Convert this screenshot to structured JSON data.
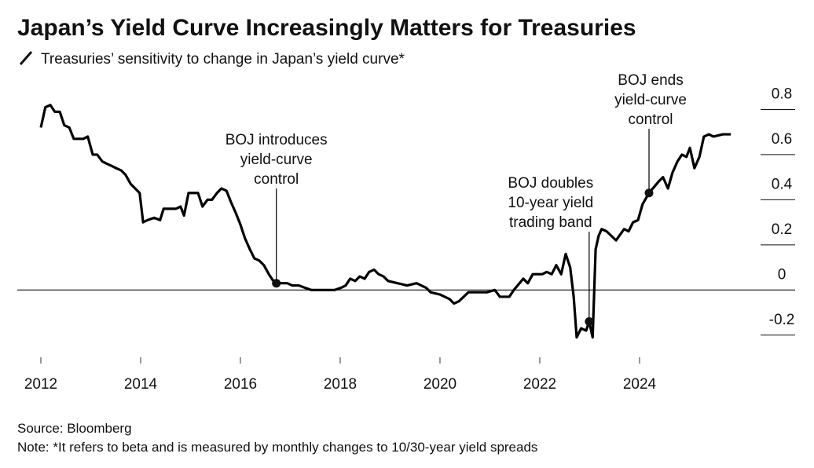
{
  "chart_data": {
    "type": "line",
    "title": "Japan’s Yield Curve Increasingly Matters for Treasuries",
    "subtitle": "Treasuries’ sensitivity to change in Japan’s yield curve*",
    "source": "Source: Bloomberg",
    "note": "Note: *It refers to beta and is measured by monthly changes to 10/30-year yield spreads",
    "color": "#000000",
    "xlim": [
      2011.6,
      2026.3
    ],
    "xticks": [
      2012,
      2014,
      2016,
      2018,
      2020,
      2022,
      2024
    ],
    "ylim": [
      -0.28,
      0.94
    ],
    "yticks": [
      -0.2,
      0,
      0.2,
      0.4,
      0.6,
      0.8
    ],
    "x": [
      2012.0,
      2012.09,
      2012.19,
      2012.28,
      2012.38,
      2012.47,
      2012.57,
      2012.66,
      2012.76,
      2012.85,
      2012.94,
      2013.04,
      2013.13,
      2013.23,
      2013.32,
      2013.42,
      2013.51,
      2013.61,
      2013.7,
      2013.8,
      2013.89,
      2013.98,
      2014.05,
      2014.14,
      2014.27,
      2014.39,
      2014.46,
      2014.58,
      2014.71,
      2014.8,
      2014.87,
      2014.96,
      2015.06,
      2015.15,
      2015.24,
      2015.34,
      2015.43,
      2015.53,
      2015.62,
      2015.72,
      2015.81,
      2015.91,
      2016.0,
      2016.09,
      2016.19,
      2016.28,
      2016.38,
      2016.47,
      2016.57,
      2016.66,
      2016.72,
      2016.85,
      2016.94,
      2017.04,
      2017.17,
      2017.29,
      2017.42,
      2017.51,
      2017.64,
      2017.76,
      2017.89,
      2018.02,
      2018.11,
      2018.2,
      2018.3,
      2018.39,
      2018.49,
      2018.58,
      2018.68,
      2018.77,
      2018.87,
      2018.96,
      2019.15,
      2019.34,
      2019.53,
      2019.72,
      2019.81,
      2020.0,
      2020.19,
      2020.28,
      2020.38,
      2020.57,
      2020.76,
      2020.94,
      2021.1,
      2021.2,
      2021.39,
      2021.48,
      2021.67,
      2021.76,
      2021.86,
      2022.05,
      2022.14,
      2022.24,
      2022.33,
      2022.43,
      2022.52,
      2022.61,
      2022.68,
      2022.74,
      2022.83,
      2022.93,
      2022.99,
      2023.06,
      2023.12,
      2023.18,
      2023.24,
      2023.34,
      2023.53,
      2023.69,
      2023.78,
      2023.87,
      2023.97,
      2024.06,
      2024.19,
      2024.38,
      2024.47,
      2024.57,
      2024.66,
      2024.76,
      2024.85,
      2024.94,
      2025.01,
      2025.1,
      2025.2,
      2025.29,
      2025.39,
      2025.48,
      2025.67,
      2025.83
    ],
    "values": [
      0.72,
      0.81,
      0.82,
      0.79,
      0.79,
      0.73,
      0.72,
      0.67,
      0.67,
      0.67,
      0.68,
      0.6,
      0.6,
      0.57,
      0.56,
      0.55,
      0.54,
      0.53,
      0.51,
      0.47,
      0.45,
      0.43,
      0.3,
      0.31,
      0.32,
      0.31,
      0.36,
      0.36,
      0.36,
      0.37,
      0.33,
      0.43,
      0.43,
      0.43,
      0.37,
      0.4,
      0.4,
      0.43,
      0.45,
      0.44,
      0.39,
      0.34,
      0.29,
      0.23,
      0.18,
      0.14,
      0.13,
      0.11,
      0.07,
      0.04,
      0.03,
      0.03,
      0.03,
      0.02,
      0.02,
      0.01,
      0.0,
      0.0,
      0.0,
      0.0,
      0.0,
      0.01,
      0.02,
      0.05,
      0.04,
      0.06,
      0.05,
      0.08,
      0.09,
      0.07,
      0.06,
      0.04,
      0.03,
      0.02,
      0.03,
      0.01,
      -0.01,
      -0.02,
      -0.04,
      -0.06,
      -0.05,
      -0.01,
      -0.01,
      -0.01,
      0.0,
      -0.03,
      -0.03,
      0.0,
      0.05,
      0.03,
      0.07,
      0.07,
      0.08,
      0.07,
      0.11,
      0.07,
      0.16,
      0.1,
      -0.03,
      -0.21,
      -0.17,
      -0.18,
      -0.14,
      -0.21,
      0.18,
      0.24,
      0.27,
      0.26,
      0.22,
      0.27,
      0.26,
      0.3,
      0.31,
      0.38,
      0.43,
      0.48,
      0.5,
      0.45,
      0.52,
      0.57,
      0.6,
      0.59,
      0.63,
      0.54,
      0.59,
      0.68,
      0.69,
      0.68,
      0.69,
      0.69
    ],
    "annotations": [
      {
        "lines": [
          "BOJ introduces",
          "yield-curve",
          "control"
        ],
        "x": 2016.72,
        "y": 0.03
      },
      {
        "lines": [
          "BOJ doubles",
          "10-year yield",
          "trading band"
        ],
        "x": 2022.99,
        "y": -0.14
      },
      {
        "lines": [
          "BOJ ends",
          "yield-curve",
          "control"
        ],
        "x": 2024.19,
        "y": 0.43
      }
    ]
  }
}
